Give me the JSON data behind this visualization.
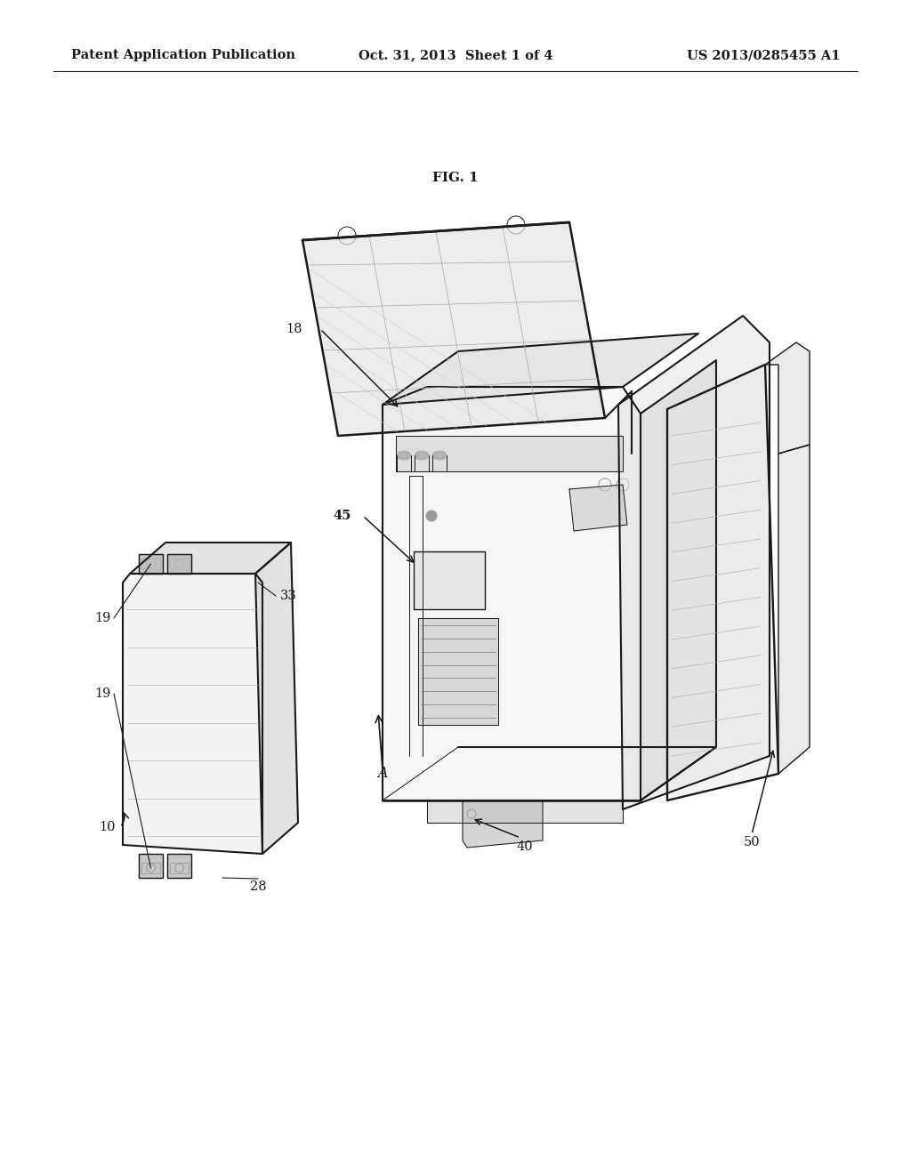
{
  "background_color": "#ffffff",
  "page_width": 10.24,
  "page_height": 13.2,
  "header_text_left": "Patent Application Publication",
  "header_text_mid": "Oct. 31, 2013  Sheet 1 of 4",
  "header_text_right": "US 2013/0285455 A1",
  "fig_label": "FIG. 1",
  "line_color": "#1a1a1a",
  "gray1": "#888888",
  "gray2": "#aaaaaa",
  "gray3": "#cccccc",
  "gray_light": "#e8e8e8",
  "label_fontsize": 10.5,
  "header_fontsize": 10.5
}
